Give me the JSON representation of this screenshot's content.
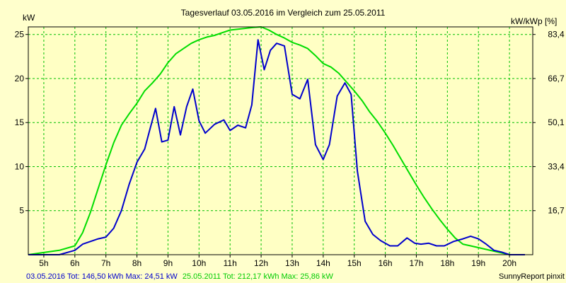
{
  "chart_data": {
    "type": "line",
    "title": "Tagesverlauf 03.05.2016 im Vergleich zum 25.05.2011",
    "ylabel_left": "kW",
    "ylabel_right": "kW/kWp [%]",
    "x_ticks": [
      "5h",
      "6h",
      "7h",
      "8h",
      "9h",
      "10h",
      "11h",
      "12h",
      "13h",
      "14h",
      "15h",
      "16h",
      "17h",
      "18h",
      "19h",
      "20h"
    ],
    "xlim": [
      4.5,
      20.75
    ],
    "ylim": [
      0,
      25.86
    ],
    "y_ticks_left": [
      "5",
      "10",
      "15",
      "20",
      "25"
    ],
    "y_ticks_left_values": [
      5,
      10,
      15,
      20,
      25
    ],
    "y_ticks_right": [
      "16,7",
      "33,4",
      "50,1",
      "66,7",
      "83,4"
    ],
    "grid": true,
    "series": [
      {
        "name": "03.05.2016",
        "color": "#0000cc",
        "x": [
          4.5,
          5.5,
          6.0,
          6.25,
          6.5,
          6.75,
          7.0,
          7.25,
          7.5,
          7.75,
          8.0,
          8.25,
          8.4,
          8.6,
          8.8,
          9.0,
          9.2,
          9.4,
          9.6,
          9.8,
          10.0,
          10.2,
          10.5,
          10.8,
          11.0,
          11.25,
          11.5,
          11.7,
          11.9,
          12.1,
          12.3,
          12.5,
          12.75,
          13.0,
          13.25,
          13.5,
          13.75,
          14.0,
          14.2,
          14.45,
          14.7,
          14.9,
          15.1,
          15.35,
          15.6,
          15.85,
          16.15,
          16.4,
          16.7,
          16.95,
          17.15,
          17.4,
          17.65,
          17.9,
          18.2,
          18.5,
          18.75,
          19.0,
          19.25,
          19.5,
          19.75,
          20.0,
          20.5
        ],
        "values": [
          0,
          0,
          0.5,
          1.2,
          1.5,
          1.8,
          2.0,
          3.0,
          5.0,
          8.0,
          10.5,
          12.0,
          14.0,
          16.6,
          12.8,
          13.0,
          16.8,
          13.6,
          16.8,
          18.8,
          15.2,
          13.8,
          14.8,
          15.3,
          14.1,
          14.7,
          14.4,
          17.0,
          24.4,
          21.0,
          23.2,
          24.0,
          23.7,
          18.2,
          17.7,
          19.9,
          12.5,
          10.8,
          12.5,
          18.0,
          19.5,
          18.2,
          9.5,
          3.8,
          2.3,
          1.6,
          1.0,
          1.0,
          1.9,
          1.3,
          1.2,
          1.3,
          1.0,
          1.0,
          1.5,
          1.8,
          2.1,
          1.8,
          1.2,
          0.5,
          0.3,
          0,
          0
        ]
      },
      {
        "name": "25.05.2011",
        "color": "#00dd00",
        "x": [
          4.5,
          5.5,
          6.0,
          6.25,
          6.5,
          6.75,
          7.0,
          7.25,
          7.5,
          7.75,
          8.0,
          8.25,
          8.5,
          8.75,
          9.0,
          9.25,
          9.5,
          9.75,
          10.0,
          10.25,
          10.5,
          10.75,
          11.0,
          11.25,
          11.5,
          11.75,
          12.0,
          12.25,
          12.5,
          12.75,
          13.0,
          13.25,
          13.5,
          13.75,
          14.0,
          14.25,
          14.5,
          14.75,
          15.0,
          15.25,
          15.5,
          15.75,
          16.0,
          16.25,
          16.5,
          16.75,
          17.0,
          17.25,
          17.5,
          17.75,
          18.0,
          18.25,
          18.5,
          18.75,
          19.0,
          19.25,
          19.5,
          19.75,
          20.0,
          20.25,
          20.5
        ],
        "values": [
          0,
          0.5,
          1.0,
          2.5,
          4.8,
          7.5,
          10.2,
          12.7,
          14.7,
          16.0,
          17.2,
          18.6,
          19.5,
          20.5,
          21.8,
          22.8,
          23.4,
          24.0,
          24.4,
          24.7,
          24.9,
          25.2,
          25.5,
          25.6,
          25.7,
          25.8,
          25.86,
          25.5,
          25.0,
          24.6,
          24.1,
          23.8,
          23.4,
          22.6,
          21.7,
          21.3,
          20.6,
          19.6,
          18.6,
          17.5,
          16.2,
          15.1,
          13.8,
          12.4,
          10.9,
          9.4,
          7.9,
          6.5,
          5.2,
          4.0,
          2.9,
          1.9,
          1.2,
          1.0,
          0.8,
          0.6,
          0.4,
          0.2,
          0,
          0,
          0
        ]
      }
    ]
  },
  "footer": {
    "series1_label": "03.05.2016 Tot: 146,50 kWh Max: 24,51 kW",
    "series2_label": "25.05.2011 Tot: 212,17 kWh Max: 25,86 kW",
    "credit": "SunnyReport pinxit"
  }
}
